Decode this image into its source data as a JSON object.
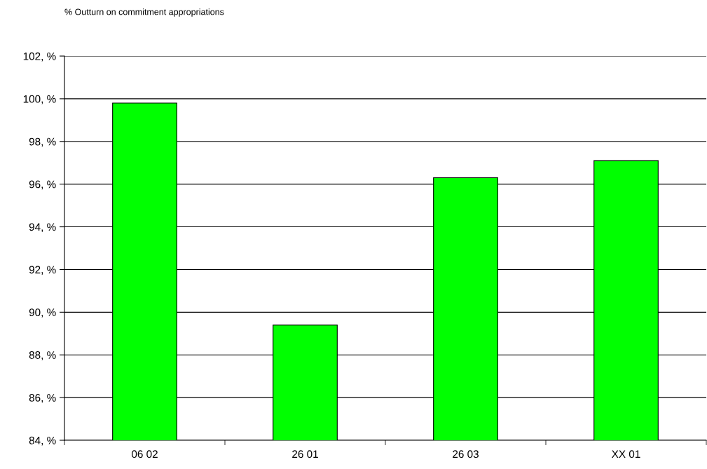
{
  "chart_data": {
    "type": "bar",
    "title": "% Outturn on commitment appropriations",
    "categories": [
      "06 02",
      "26 01",
      "26 03",
      "XX 01"
    ],
    "series": [
      {
        "color": "#00ff00",
        "values": [
          99.8,
          89.4,
          96.3,
          97.1
        ]
      }
    ],
    "ylim": [
      84,
      102
    ],
    "yticks": [
      {
        "value": 84,
        "label": "84, %"
      },
      {
        "value": 86,
        "label": "86, %"
      },
      {
        "value": 88,
        "label": "88, %"
      },
      {
        "value": 90,
        "label": "90, %"
      },
      {
        "value": 92,
        "label": "92, %"
      },
      {
        "value": 94,
        "label": "94, %"
      },
      {
        "value": 96,
        "label": "96, %"
      },
      {
        "value": 98,
        "label": "98, %"
      },
      {
        "value": 100,
        "label": "100, %"
      },
      {
        "value": 102,
        "label": "102, %"
      }
    ],
    "grid": "y"
  }
}
